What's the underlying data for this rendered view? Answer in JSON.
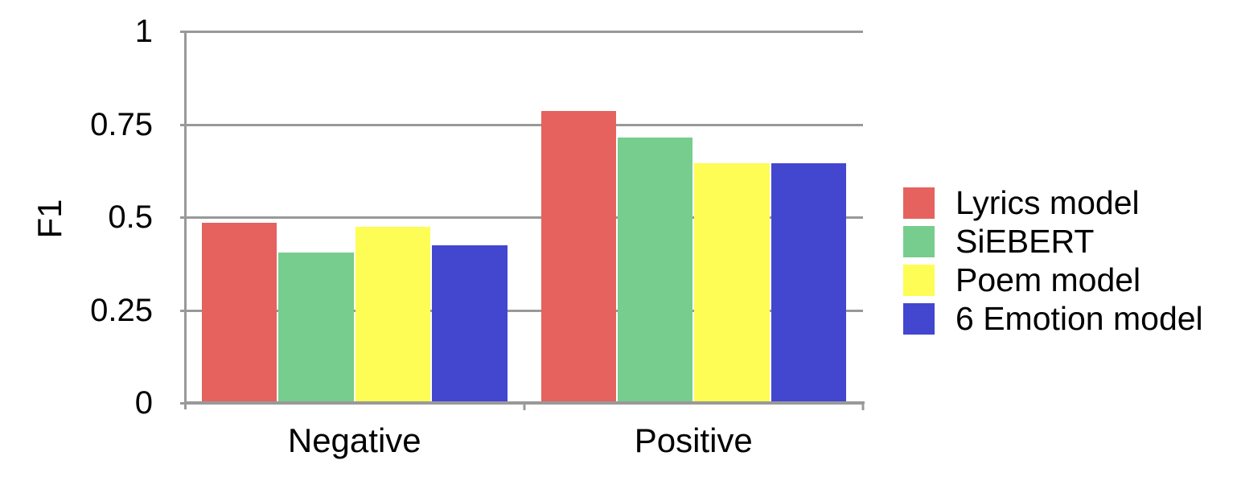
{
  "chart_data": {
    "type": "bar",
    "title": "",
    "categories": [
      "Negative",
      "Positive"
    ],
    "series": [
      {
        "name": "Lyrics model",
        "color": "#E5625E",
        "values": [
          0.485,
          0.785
        ]
      },
      {
        "name": "SiEBERT",
        "color": "#76CD8D",
        "values": [
          0.405,
          0.715
        ]
      },
      {
        "name": "Poem model",
        "color": "#FDFD55",
        "values": [
          0.475,
          0.645
        ]
      },
      {
        "name": "6 Emotion model",
        "color": "#4346CF",
        "values": [
          0.425,
          0.645
        ]
      }
    ],
    "xlabel": "",
    "ylabel": "F1",
    "ylim": [
      0,
      1
    ],
    "yticks": [
      1,
      0.75,
      0.5,
      0.25,
      0
    ],
    "ytick_labels": [
      "1",
      "0.75",
      "0.5",
      "0.25",
      "0"
    ],
    "grid": true,
    "legend_position": "right",
    "colors": {
      "axis_and_grid": "#999999",
      "text": "#000000",
      "background": "#FFFFFF"
    }
  }
}
